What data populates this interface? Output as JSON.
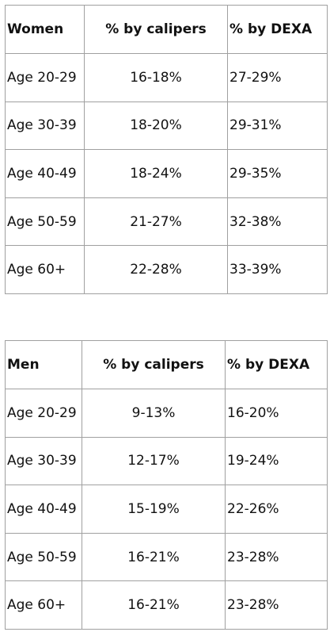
{
  "tables": [
    {
      "header": [
        "Women",
        "% by calipers",
        "% by DEXA"
      ],
      "rows": [
        [
          "Age 20-29",
          "16-18%",
          "27-29%"
        ],
        [
          "Age 30-39",
          "18-20%",
          "29-31%"
        ],
        [
          "Age 40-49",
          "18-24%",
          "29-35%"
        ],
        [
          "Age 50-59",
          "21-27%",
          "32-38%"
        ],
        [
          "Age 60+",
          "22-28%",
          "33-39%"
        ]
      ]
    },
    {
      "header": [
        "Men",
        "% by calipers",
        "% by DEXA"
      ],
      "rows": [
        [
          "Age 20-29",
          "9-13%",
          "16-20%"
        ],
        [
          "Age 30-39",
          "12-17%",
          "19-24%"
        ],
        [
          "Age 40-49",
          "15-19%",
          "22-26%"
        ],
        [
          "Age 50-59",
          "16-21%",
          "23-28%"
        ],
        [
          "Age 60+",
          "16-21%",
          "23-28%"
        ]
      ]
    }
  ]
}
